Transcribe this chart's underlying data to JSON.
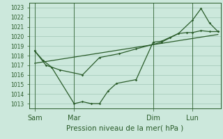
{
  "background_color": "#cce8dc",
  "grid_color": "#a8ccbc",
  "line_color": "#2a5c2a",
  "xlabel": "Pression niveau de la mer( hPa )",
  "xlabel_fontsize": 7.5,
  "ylim": [
    1012.5,
    1023.5
  ],
  "yticks": [
    1013,
    1014,
    1015,
    1016,
    1017,
    1018,
    1019,
    1020,
    1021,
    1022,
    1023
  ],
  "ytick_fontsize": 5.5,
  "xtick_labels": [
    "Sam",
    "Mar",
    "Dim",
    "Lun"
  ],
  "xtick_positions": [
    0,
    28,
    84,
    112
  ],
  "vline_positions": [
    0,
    28,
    84,
    112
  ],
  "xlim": [
    -4,
    132
  ],
  "line1_x": [
    0,
    6,
    12,
    28,
    34,
    40,
    46,
    52,
    58,
    72,
    84,
    90,
    96,
    102,
    108,
    112,
    118,
    124,
    130
  ],
  "line1_y": [
    1018.5,
    1017.5,
    1016.8,
    1013.0,
    1013.2,
    1013.0,
    1013.0,
    1014.3,
    1015.1,
    1015.5,
    1019.4,
    1019.5,
    1019.9,
    1020.3,
    1020.4,
    1020.4,
    1020.6,
    1020.5,
    1020.5
  ],
  "line2_x": [
    0,
    8,
    18,
    34,
    46,
    60,
    72,
    90,
    102,
    112,
    118,
    124,
    130
  ],
  "line2_y": [
    1018.5,
    1017.0,
    1016.5,
    1016.0,
    1017.8,
    1018.2,
    1018.7,
    1019.4,
    1020.3,
    1021.7,
    1022.9,
    1021.4,
    1020.5
  ],
  "line3_x": [
    0,
    130
  ],
  "line3_y": [
    1017.2,
    1020.2
  ]
}
